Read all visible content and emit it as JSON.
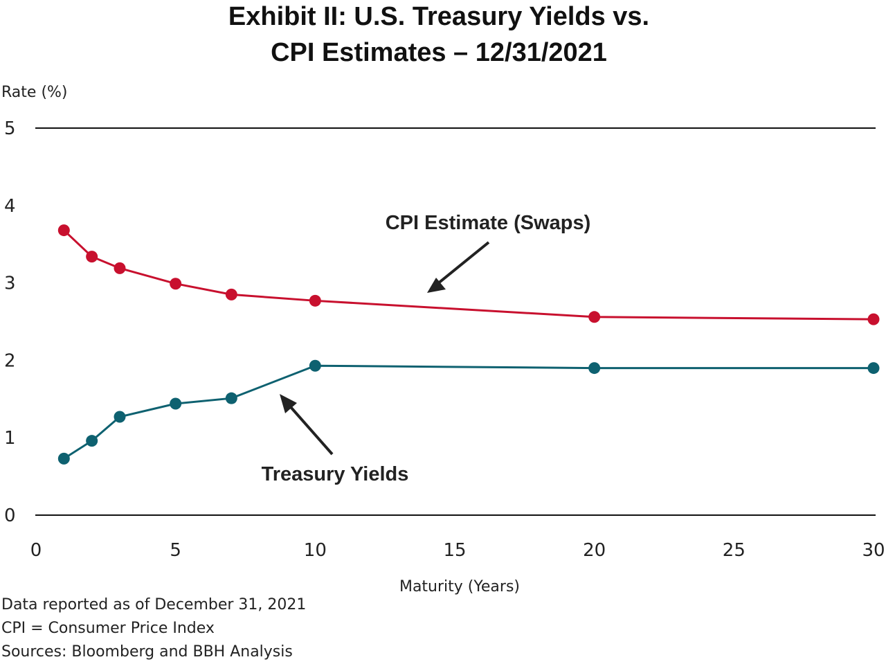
{
  "chart_data": {
    "type": "line",
    "title_line1": "Exhibit II: U.S. Treasury Yields vs.",
    "title_line2": "CPI Estimates – 12/31/2021",
    "ylabel": "Rate (%)",
    "xlabel": "Maturity (Years)",
    "xlim": [
      0,
      30
    ],
    "ylim": [
      0,
      5
    ],
    "x_ticks": [
      "0",
      "5",
      "10",
      "15",
      "20",
      "25",
      "30"
    ],
    "y_ticks": [
      "0",
      "1",
      "2",
      "3",
      "4",
      "5"
    ],
    "gridlines": "horizontal at y=0 and y=5 only",
    "series": [
      {
        "name": "CPI Estimate (Swaps)",
        "color": "#c8102e",
        "x": [
          1,
          2,
          3,
          5,
          7,
          10,
          20,
          30
        ],
        "y": [
          3.68,
          3.34,
          3.19,
          2.99,
          2.85,
          2.77,
          2.56,
          2.53
        ]
      },
      {
        "name": "Treasury Yields",
        "color": "#0e6170",
        "x": [
          1,
          2,
          3,
          5,
          7,
          10,
          20,
          30
        ],
        "y": [
          0.73,
          0.96,
          1.27,
          1.44,
          1.51,
          1.93,
          1.9,
          1.9
        ]
      }
    ],
    "annotations": [
      {
        "text": "CPI Estimate (Swaps)",
        "series": "CPI Estimate (Swaps)"
      },
      {
        "text": "Treasury Yields",
        "series": "Treasury Yields"
      }
    ]
  },
  "footnotes": [
    "Data reported as of December 31, 2021",
    "CPI = Consumer Price Index",
    "Sources: Bloomberg and BBH Analysis"
  ]
}
